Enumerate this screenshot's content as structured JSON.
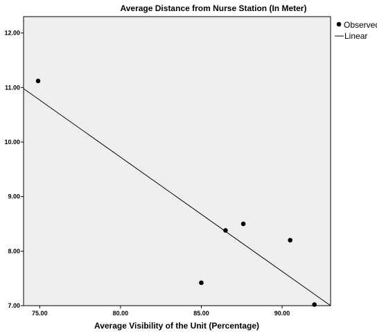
{
  "chart_data": {
    "type": "scatter",
    "title": "Average Distance from Nurse Station (In Meter)",
    "xlabel": "Average Visibility of the Unit (Percentage)",
    "ylabel": "",
    "xlim": [
      74.0,
      93.0
    ],
    "ylim": [
      7.0,
      12.3
    ],
    "x_ticks": [
      "75.00",
      "80.00",
      "85.00",
      "90.00"
    ],
    "x_tick_values": [
      75,
      80,
      85,
      90
    ],
    "y_ticks": [
      "7.00",
      "8.00",
      "9.00",
      "10.00",
      "11.00",
      "12.00"
    ],
    "y_tick_values": [
      7,
      8,
      9,
      10,
      11,
      12
    ],
    "grid": false,
    "legend_position": "top-right",
    "series": [
      {
        "name": "Observed",
        "kind": "points",
        "color": "#000000",
        "points": [
          {
            "x": 74.9,
            "y": 11.12
          },
          {
            "x": 85.0,
            "y": 7.42
          },
          {
            "x": 86.5,
            "y": 8.38
          },
          {
            "x": 87.6,
            "y": 8.5
          },
          {
            "x": 90.5,
            "y": 8.2
          },
          {
            "x": 92.0,
            "y": 7.02
          }
        ]
      },
      {
        "name": "Linear",
        "kind": "line",
        "color": "#000000",
        "points": [
          {
            "x": 74.0,
            "y": 10.98
          },
          {
            "x": 93.0,
            "y": 7.0
          }
        ]
      }
    ],
    "colors": {
      "plot_background": "#efefef",
      "axis": "#000000",
      "marker": "#000000",
      "line": "#000000"
    }
  }
}
